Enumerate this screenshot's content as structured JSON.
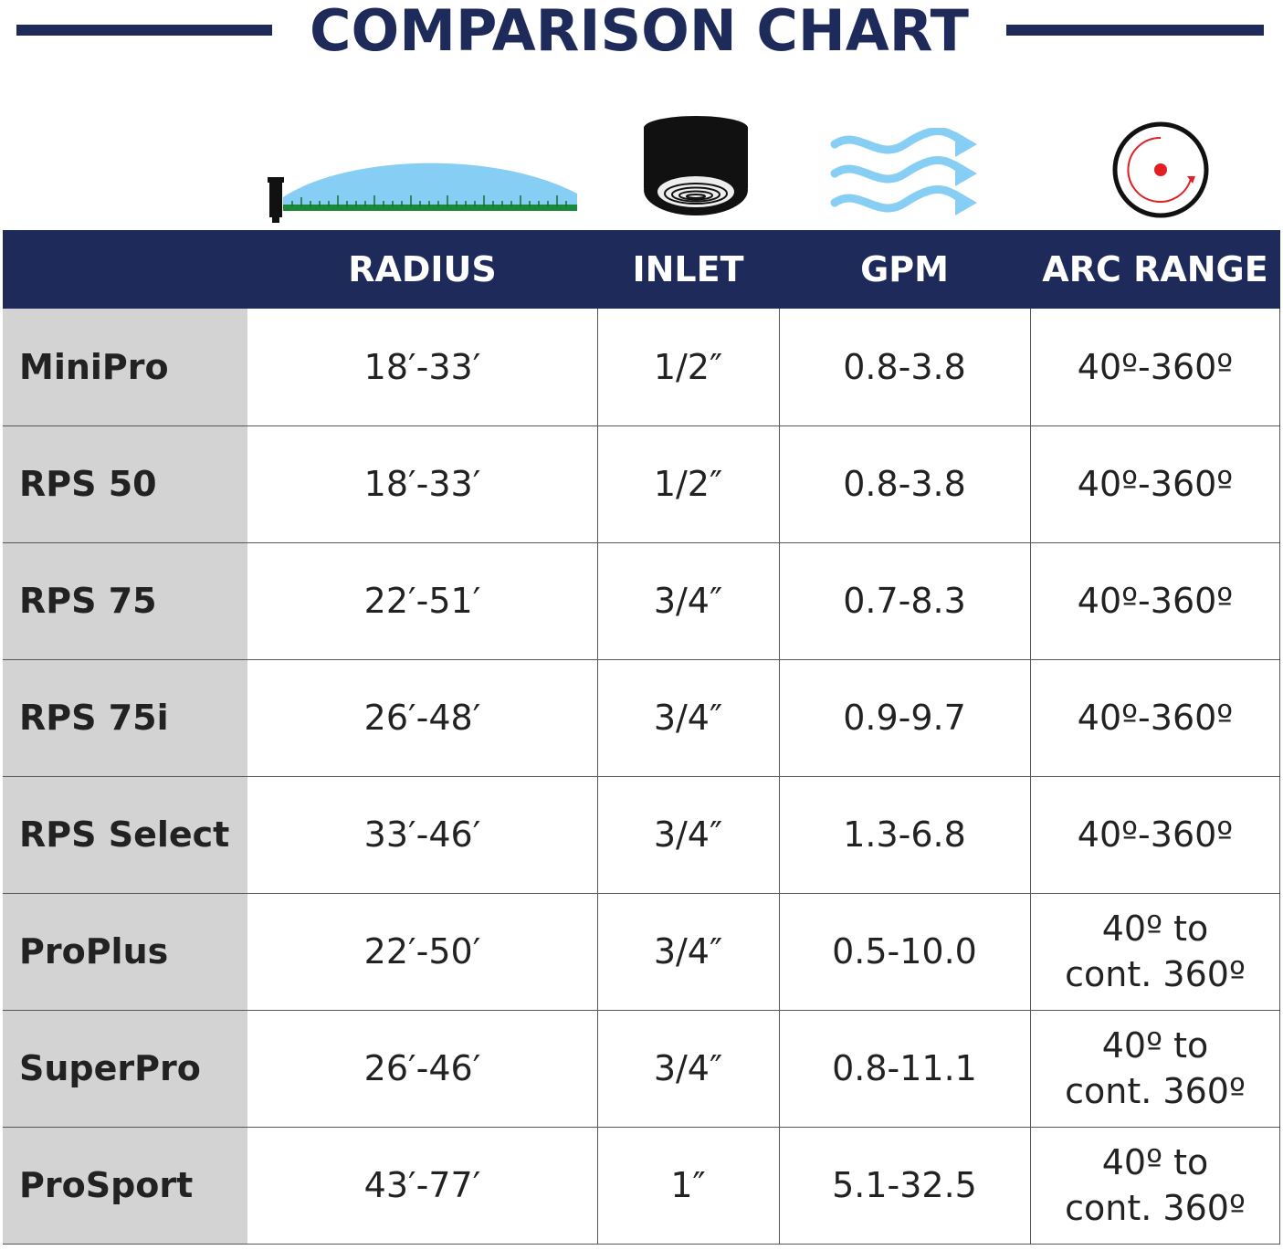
{
  "title": "COMPARISON CHART",
  "icons": [
    "radius-icon",
    "inlet-icon",
    "gpm-icon",
    "arc-range-icon"
  ],
  "colors": {
    "navy": "#1d2a5a",
    "label_bg": "#d3d3d3",
    "water": "#87cef5",
    "grass": "#1a8a3a",
    "arc_dot": "#e31e24"
  },
  "columns": [
    "RADIUS",
    "INLET",
    "GPM",
    "ARC RANGE"
  ],
  "rows": [
    {
      "name": "MiniPro",
      "radius": "18′-33′",
      "inlet": "1/2″",
      "gpm": "0.8-3.8",
      "arc_line1": "40º-360º",
      "arc_line2": ""
    },
    {
      "name": "RPS 50",
      "radius": "18′-33′",
      "inlet": "1/2″",
      "gpm": "0.8-3.8",
      "arc_line1": "40º-360º",
      "arc_line2": ""
    },
    {
      "name": "RPS 75",
      "radius": "22′-51′",
      "inlet": "3/4″",
      "gpm": "0.7-8.3",
      "arc_line1": "40º-360º",
      "arc_line2": ""
    },
    {
      "name": "RPS 75i",
      "radius": "26′-48′",
      "inlet": "3/4″",
      "gpm": "0.9-9.7",
      "arc_line1": "40º-360º",
      "arc_line2": ""
    },
    {
      "name": "RPS Select",
      "radius": "33′-46′",
      "inlet": "3/4″",
      "gpm": "1.3-6.8",
      "arc_line1": "40º-360º",
      "arc_line2": ""
    },
    {
      "name": "ProPlus",
      "radius": "22′-50′",
      "inlet": "3/4″",
      "gpm": "0.5-10.0",
      "arc_line1": "40º to",
      "arc_line2": "cont. 360º"
    },
    {
      "name": "SuperPro",
      "radius": "26′-46′",
      "inlet": "3/4″",
      "gpm": "0.8-11.1",
      "arc_line1": "40º to",
      "arc_line2": "cont. 360º"
    },
    {
      "name": "ProSport",
      "radius": "43′-77′",
      "inlet": "1″",
      "gpm": "5.1-32.5",
      "arc_line1": "40º to",
      "arc_line2": "cont. 360º"
    }
  ]
}
